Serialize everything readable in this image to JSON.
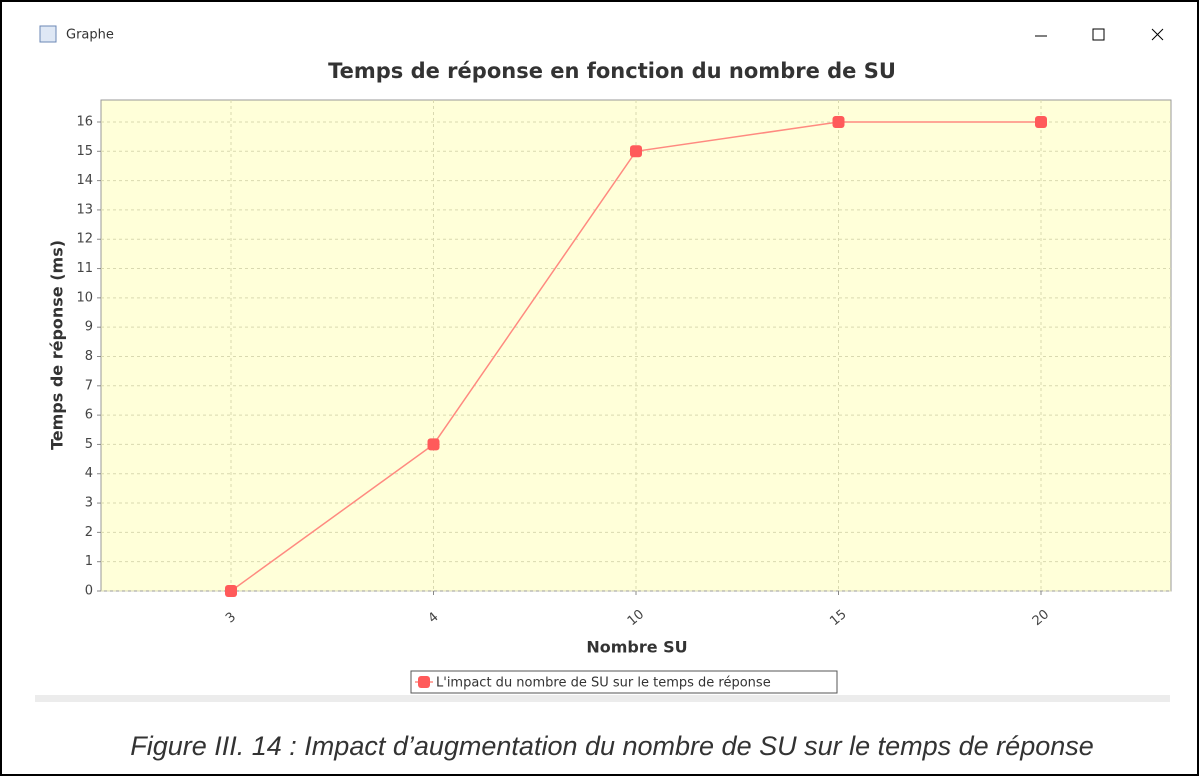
{
  "window": {
    "title": "Graphe"
  },
  "chart_data": {
    "type": "line",
    "title": "Temps de réponse en fonction du nombre de SU",
    "x_label": "Nombre SU",
    "y_label": "Temps de réponse (ms)",
    "categories": [
      "3",
      "4",
      "10",
      "15",
      "20"
    ],
    "series": [
      {
        "name": "L'impact du nombre de SU sur le temps de réponse",
        "color": "#ff5a5a",
        "values": [
          0,
          5,
          15,
          16,
          16
        ]
      }
    ],
    "ylim": [
      0,
      16.75
    ],
    "yticks": [
      0,
      1,
      2,
      3,
      4,
      5,
      6,
      7,
      8,
      9,
      10,
      11,
      12,
      13,
      14,
      15,
      16
    ],
    "grid": true,
    "legend": "bottom"
  },
  "caption": "Figure III. 14 : Impact d’augmentation du nombre de SU sur le temps de réponse"
}
